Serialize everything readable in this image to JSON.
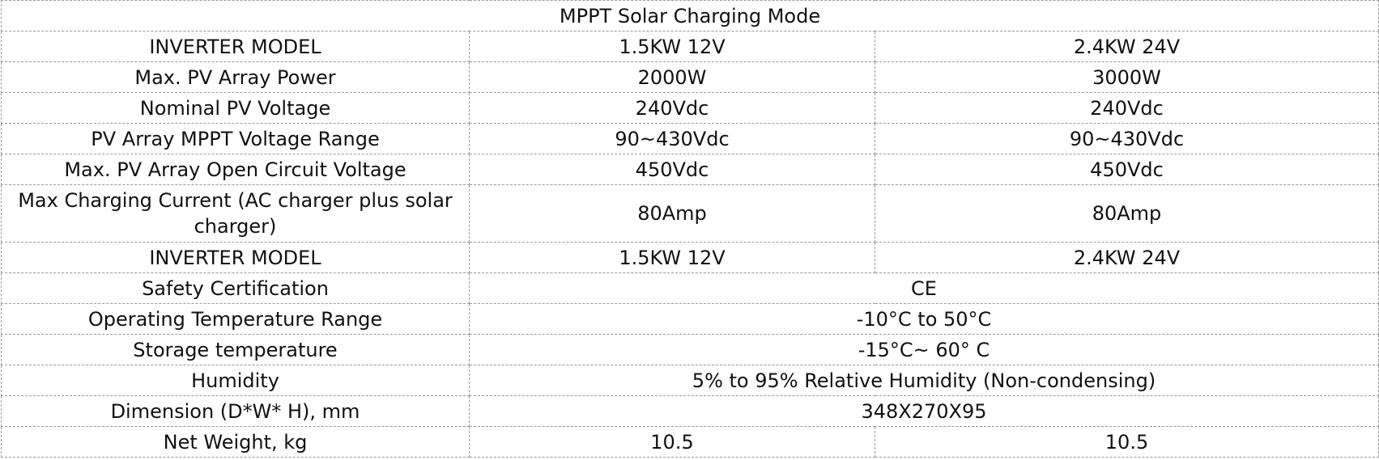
{
  "title": "MPPT Solar Charging Mode",
  "rows": [
    {
      "label": "INVERTER MODEL",
      "v1": "1.5KW 12V",
      "v2": "2.4KW 24V"
    },
    {
      "label": "Max. PV Array Power",
      "v1": "2000W",
      "v2": "3000W"
    },
    {
      "label": "Nominal PV Voltage",
      "v1": "240Vdc",
      "v2": "240Vdc"
    },
    {
      "label": "PV Array MPPT Voltage Range",
      "v1": "90~430Vdc",
      "v2": "90~430Vdc"
    },
    {
      "label": "Max. PV Array Open Circuit Voltage",
      "v1": "450Vdc",
      "v2": "450Vdc"
    },
    {
      "label": "Max Charging Current (AC charger plus solar charger)",
      "v1": "80Amp",
      "v2": "80Amp"
    },
    {
      "label": "INVERTER MODEL",
      "v1": "1.5KW 12V",
      "v2": "2.4KW 24V"
    },
    {
      "label": "Safety Certification",
      "value": "CE"
    },
    {
      "label": "Operating Temperature Range",
      "value": "-10°C to 50°C"
    },
    {
      "label": "Storage temperature",
      "value": "-15°C~ 60° C"
    },
    {
      "label": "Humidity",
      "value": "5% to 95% Relative Humidity (Non-condensing)"
    },
    {
      "label": "Dimension (D*W* H), mm",
      "value": "348X270X95"
    },
    {
      "label": "Net Weight, kg",
      "v1": "10.5",
      "v2": "10.5"
    }
  ]
}
